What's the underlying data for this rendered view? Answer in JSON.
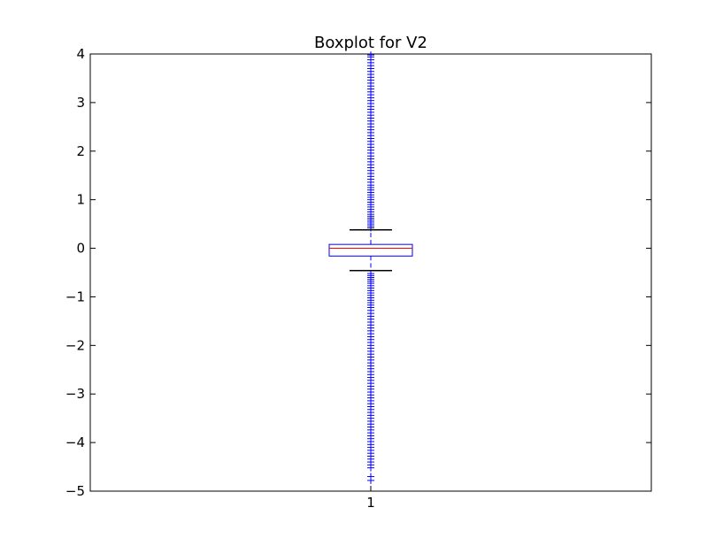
{
  "chart_data": {
    "type": "boxplot",
    "title": "Boxplot for V2",
    "xlabel": "",
    "ylabel": "",
    "categories": [
      "1"
    ],
    "ylim": [
      -5,
      4
    ],
    "yticks": [
      "4",
      "3",
      "2",
      "1",
      "0",
      "−1",
      "−2",
      "−3",
      "−4",
      "−5"
    ],
    "grid": false,
    "box": {
      "q1": -0.16,
      "median": 0.0,
      "q3": 0.08,
      "whisker_low": -0.46,
      "whisker_high": 0.38
    },
    "outliers_high": [
      0.42,
      0.46,
      0.5,
      0.54,
      0.58,
      0.62,
      0.66,
      0.7,
      0.75,
      0.8,
      0.85,
      0.9,
      0.95,
      1.0,
      1.05,
      1.1,
      1.15,
      1.2,
      1.25,
      1.3,
      1.36,
      1.42,
      1.48,
      1.54,
      1.6,
      1.66,
      1.72,
      1.78,
      1.84,
      1.9,
      1.96,
      2.02,
      2.08,
      2.14,
      2.2,
      2.26,
      2.32,
      2.38,
      2.44,
      2.5,
      2.56,
      2.62,
      2.68,
      2.74,
      2.8,
      2.86,
      2.92,
      2.98,
      3.04,
      3.1,
      3.16,
      3.22,
      3.28,
      3.34,
      3.4,
      3.46,
      3.52,
      3.58,
      3.64,
      3.7,
      3.76,
      3.82,
      3.88,
      3.94,
      3.98
    ],
    "outliers_low": [
      -0.52,
      -0.56,
      -0.6,
      -0.64,
      -0.68,
      -0.72,
      -0.77,
      -0.82,
      -0.87,
      -0.92,
      -0.97,
      -1.02,
      -1.07,
      -1.12,
      -1.17,
      -1.22,
      -1.28,
      -1.34,
      -1.4,
      -1.46,
      -1.52,
      -1.58,
      -1.64,
      -1.7,
      -1.76,
      -1.82,
      -1.88,
      -1.94,
      -2.0,
      -2.06,
      -2.12,
      -2.18,
      -2.24,
      -2.3,
      -2.36,
      -2.42,
      -2.48,
      -2.54,
      -2.6,
      -2.66,
      -2.72,
      -2.78,
      -2.84,
      -2.9,
      -2.96,
      -3.02,
      -3.08,
      -3.14,
      -3.2,
      -3.26,
      -3.32,
      -3.38,
      -3.44,
      -3.5,
      -3.56,
      -3.62,
      -3.68,
      -3.74,
      -3.8,
      -3.86,
      -3.92,
      -3.98,
      -4.04,
      -4.1,
      -4.16,
      -4.22,
      -4.28,
      -4.34,
      -4.4,
      -4.46,
      -4.52,
      -4.7,
      -4.78
    ],
    "colors": {
      "box": "#0000ff",
      "median": "#ff0000",
      "whisker_cap": "#000000",
      "flier": "#0000ff"
    }
  }
}
